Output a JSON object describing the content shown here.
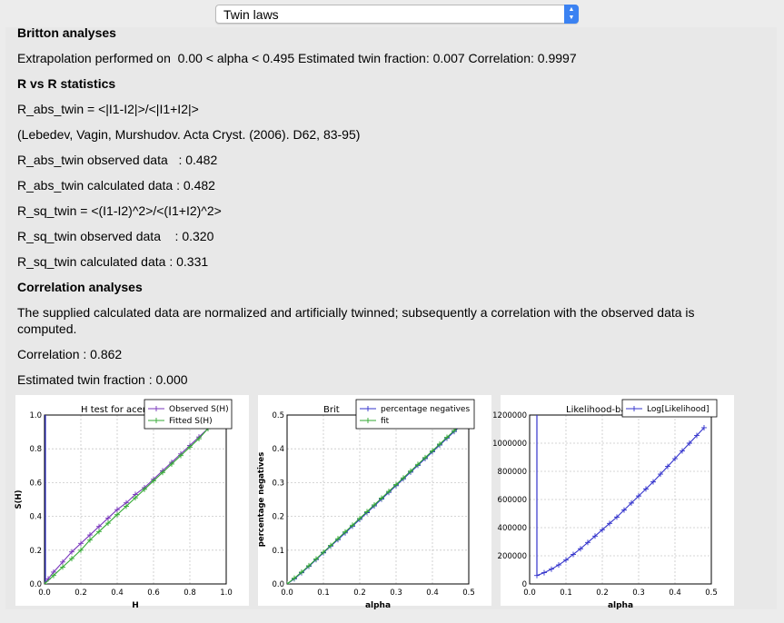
{
  "toolbar": {
    "dropdown_value": "Twin laws"
  },
  "report": {
    "britton_heading": "Britton analyses",
    "britton_line": "Extrapolation performed on  0.00 < alpha < 0.495 Estimated twin fraction: 0.007 Correlation: 0.9997",
    "rvr_heading": "R vs R statistics",
    "r_abs_formula": "R_abs_twin = <|I1-I2|>/<|I1+I2|>",
    "reference": "(Lebedev, Vagin, Murshudov. Acta Cryst. (2006). D62, 83-95)",
    "r_abs_obs": "R_abs_twin observed data   : 0.482",
    "r_abs_calc": "R_abs_twin calculated data : 0.482",
    "r_sq_formula": "R_sq_twin = <(I1-I2)^2>/<(I1+I2)^2>",
    "r_sq_obs": "R_sq_twin observed data    : 0.320",
    "r_sq_calc": "R_sq_twin calculated data : 0.331",
    "corr_heading": "Correlation analyses",
    "corr_text": "The supplied calculated data are normalized and artificially twinned; subsequently a correlation with the observed data is computed.",
    "correlation": "Correlation : 0.862",
    "est_twin": "Estimated twin fraction : 0.000"
  },
  "colors": {
    "series_blue": "#3333cc",
    "series_green": "#33aa33",
    "series_purple": "#7733bb",
    "grid": "#c8c8c8"
  },
  "chart_data": [
    {
      "type": "line",
      "title": "H test for acentr",
      "xlabel": "H",
      "ylabel": "S(H)",
      "xlim": [
        0.0,
        1.0
      ],
      "ylim": [
        0.0,
        1.0
      ],
      "xticks": [
        "0.0",
        "0.2",
        "0.4",
        "0.6",
        "0.8",
        "1.0"
      ],
      "yticks": [
        "0.0",
        "0.2",
        "0.4",
        "0.6",
        "0.8",
        "1.0"
      ],
      "grid": true,
      "legend": "top-right",
      "series": [
        {
          "name": "Observed S(H)",
          "color": "#7733bb",
          "x": [
            0.0,
            0.02,
            0.05,
            0.1,
            0.15,
            0.2,
            0.25,
            0.3,
            0.35,
            0.4,
            0.45,
            0.5,
            0.55,
            0.6,
            0.65,
            0.7,
            0.75,
            0.8,
            0.85,
            0.9,
            0.95
          ],
          "y": [
            0.0,
            0.03,
            0.07,
            0.13,
            0.19,
            0.24,
            0.29,
            0.34,
            0.39,
            0.44,
            0.48,
            0.53,
            0.57,
            0.62,
            0.67,
            0.72,
            0.77,
            0.82,
            0.87,
            0.92,
            0.97
          ]
        },
        {
          "name": "Fitted S(H)",
          "color": "#33aa33",
          "x": [
            0.0,
            0.05,
            0.1,
            0.15,
            0.2,
            0.25,
            0.3,
            0.35,
            0.4,
            0.45,
            0.5,
            0.55,
            0.6,
            0.65,
            0.7,
            0.75,
            0.8,
            0.85,
            0.9,
            0.95
          ],
          "y": [
            0.0,
            0.05,
            0.1,
            0.15,
            0.2,
            0.26,
            0.31,
            0.36,
            0.41,
            0.46,
            0.51,
            0.56,
            0.61,
            0.66,
            0.71,
            0.76,
            0.81,
            0.86,
            0.92,
            0.97
          ]
        }
      ],
      "extra_line": {
        "color": "#3333cc",
        "x": [
          0.005,
          0.005
        ],
        "y": [
          0.0,
          1.0
        ]
      }
    },
    {
      "type": "line",
      "title": "Brit",
      "xlabel": "alpha",
      "ylabel": "percentage negatives",
      "xlim": [
        0.0,
        0.5
      ],
      "ylim": [
        0.0,
        0.5
      ],
      "xticks": [
        "0.0",
        "0.1",
        "0.2",
        "0.3",
        "0.4",
        "0.5"
      ],
      "yticks": [
        "0.0",
        "0.1",
        "0.2",
        "0.3",
        "0.4",
        "0.5"
      ],
      "grid": true,
      "legend": "top-right",
      "series": [
        {
          "name": "percentage negatives",
          "color": "#3333cc",
          "x": [
            0.0,
            0.02,
            0.04,
            0.06,
            0.08,
            0.1,
            0.12,
            0.14,
            0.16,
            0.18,
            0.2,
            0.22,
            0.24,
            0.26,
            0.28,
            0.3,
            0.32,
            0.34,
            0.36,
            0.38,
            0.4,
            0.42,
            0.44,
            0.46,
            0.48
          ],
          "y": [
            0.0,
            0.015,
            0.033,
            0.052,
            0.072,
            0.092,
            0.112,
            0.131,
            0.151,
            0.171,
            0.191,
            0.211,
            0.231,
            0.251,
            0.271,
            0.291,
            0.311,
            0.331,
            0.351,
            0.371,
            0.391,
            0.411,
            0.431,
            0.451,
            0.471
          ]
        },
        {
          "name": "fit",
          "color": "#33aa33",
          "x": [
            0.0,
            0.02,
            0.04,
            0.06,
            0.08,
            0.1,
            0.12,
            0.14,
            0.16,
            0.18,
            0.2,
            0.22,
            0.24,
            0.26,
            0.28,
            0.3,
            0.32,
            0.34,
            0.36,
            0.38,
            0.4,
            0.42,
            0.44,
            0.46,
            0.48
          ],
          "y": [
            0.0,
            0.017,
            0.035,
            0.054,
            0.074,
            0.094,
            0.114,
            0.134,
            0.154,
            0.174,
            0.194,
            0.214,
            0.234,
            0.254,
            0.274,
            0.294,
            0.314,
            0.334,
            0.354,
            0.374,
            0.394,
            0.414,
            0.434,
            0.454,
            0.474
          ]
        }
      ]
    },
    {
      "type": "line",
      "title": "Likelihood-based twin f",
      "xlabel": "alpha",
      "ylabel": "",
      "xlim": [
        0.0,
        0.5
      ],
      "ylim": [
        0,
        1200000
      ],
      "xticks": [
        "0.0",
        "0.1",
        "0.2",
        "0.3",
        "0.4",
        "0.5"
      ],
      "yticks": [
        "0",
        "200000",
        "400000",
        "600000",
        "800000",
        "1000000",
        "1200000"
      ],
      "grid": true,
      "legend": "top-right",
      "series": [
        {
          "name": "Log[Likelihood]",
          "color": "#3333cc",
          "x": [
            0.02,
            0.04,
            0.06,
            0.08,
            0.1,
            0.12,
            0.14,
            0.16,
            0.18,
            0.2,
            0.22,
            0.24,
            0.26,
            0.28,
            0.3,
            0.32,
            0.34,
            0.36,
            0.38,
            0.4,
            0.42,
            0.44,
            0.46,
            0.48
          ],
          "y": [
            60000,
            80000,
            105000,
            135000,
            170000,
            210000,
            250000,
            295000,
            340000,
            385000,
            430000,
            475000,
            525000,
            575000,
            625000,
            675000,
            725000,
            780000,
            835000,
            890000,
            945000,
            1000000,
            1055000,
            1110000
          ]
        }
      ],
      "extra_line": {
        "color": "#3333cc",
        "x": [
          0.02,
          0.02
        ],
        "y": [
          60000,
          1200000
        ]
      }
    }
  ]
}
